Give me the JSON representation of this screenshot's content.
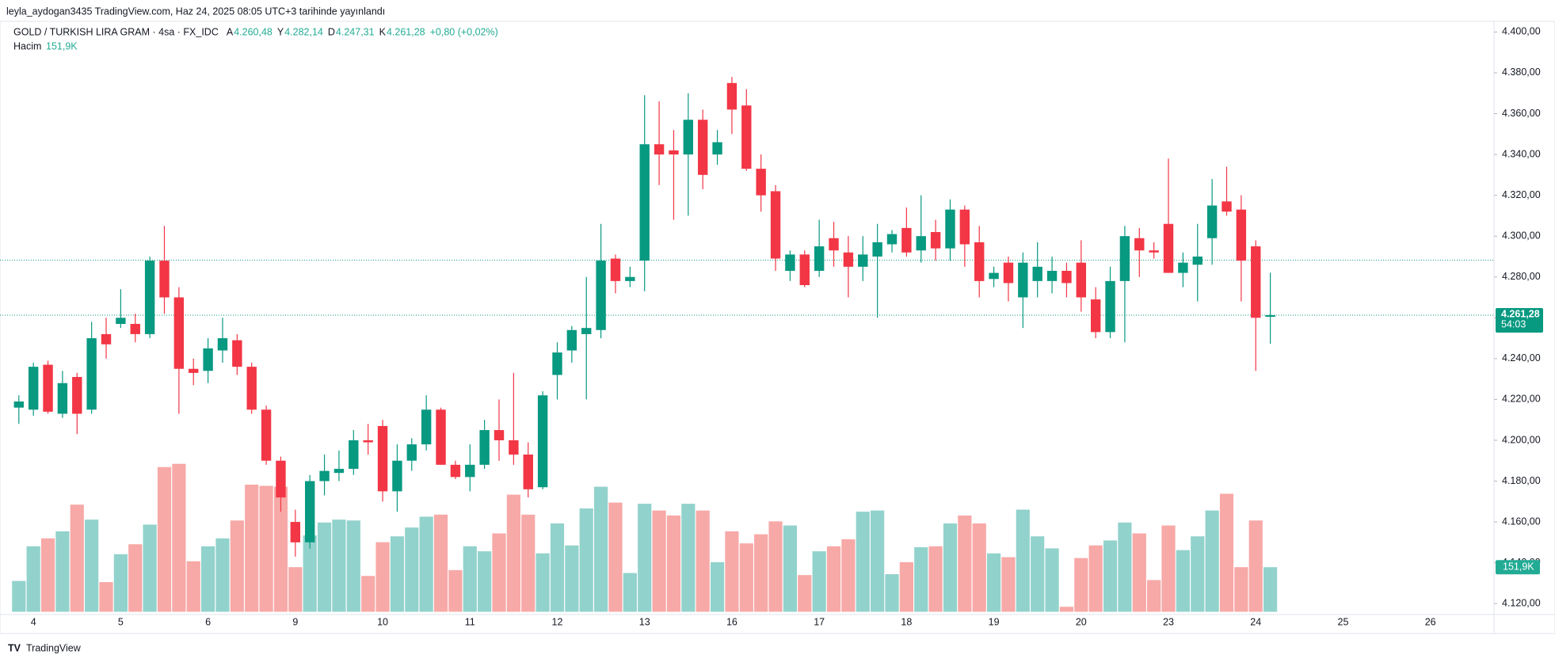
{
  "header": {
    "publisher": "leyla_aydogan3435 TradingView.com, Haz 24, 2025 08:05 UTC+3 tarihinde yayınlandı"
  },
  "chart_data": {
    "type": "candlestick",
    "symbol": "GOLD / TURKISH LIRA GRAM · 4sa · FX_IDC",
    "legend": {
      "open_key": "A",
      "open": "4.260,48",
      "high_key": "Y",
      "high": "4.282,14",
      "low_key": "D",
      "low": "4.247,31",
      "close_key": "K",
      "close": "4.261,28",
      "change": "+0,80 (+0,02%)",
      "volume_key": "Hacim",
      "volume": "151,9K"
    },
    "open": [
      4216,
      4215,
      4237,
      4213,
      4231,
      4215,
      4252,
      4257,
      4257,
      4252,
      4288,
      4270,
      4235,
      4234,
      4244,
      4249,
      4236,
      4215,
      4190,
      4160,
      4150,
      4180,
      4184,
      4186,
      4200,
      4207,
      4175,
      4190,
      4198,
      4215,
      4188,
      4182,
      4188,
      4205,
      4200,
      4193,
      4177,
      4232,
      4244,
      4252,
      4254,
      4289,
      4278,
      4288,
      4345,
      4342,
      4340,
      4357,
      4340,
      4375,
      4364,
      4333,
      4322,
      4283,
      4291,
      4283,
      4299,
      4292,
      4285,
      4290,
      4296,
      4304,
      4293,
      4302,
      4294,
      4313,
      4297,
      4279,
      4287,
      4270,
      4278,
      4278,
      4283,
      4287,
      4269,
      4253,
      4278,
      4299,
      4293,
      4306,
      4282,
      4286,
      4299,
      4317,
      4313,
      4295,
      4260.48
    ],
    "high": [
      4222,
      4238,
      4239,
      4234,
      4233,
      4258,
      4260,
      4274,
      4262,
      4290,
      4305,
      4275,
      4240,
      4250,
      4260,
      4252,
      4238,
      4217,
      4192,
      4166,
      4183,
      4193,
      4195,
      4205,
      4208,
      4210,
      4198,
      4201,
      4222,
      4216,
      4190,
      4198,
      4210,
      4220,
      4233,
      4199,
      4224,
      4248,
      4256,
      4280,
      4306,
      4291,
      4285,
      4369,
      4366,
      4352,
      4370,
      4362,
      4352,
      4378,
      4372,
      4340,
      4325,
      4293,
      4293,
      4308,
      4307,
      4300,
      4300,
      4306,
      4303,
      4314,
      4320,
      4308,
      4318,
      4315,
      4305,
      4285,
      4290,
      4292,
      4297,
      4290,
      4287,
      4298,
      4275,
      4285,
      4305,
      4304,
      4297,
      4338,
      4292,
      4306,
      4328,
      4334,
      4320,
      4298,
      4282.14
    ],
    "low": [
      4208,
      4212,
      4213,
      4211,
      4203,
      4213,
      4240,
      4255,
      4248,
      4250,
      4262,
      4213,
      4227,
      4228,
      4238,
      4232,
      4213,
      4188,
      4165,
      4143,
      4147,
      4173,
      4180,
      4183,
      4193,
      4170,
      4165,
      4185,
      4195,
      4188,
      4181,
      4175,
      4186,
      4190,
      4188,
      4172,
      4176,
      4220,
      4238,
      4220,
      4250,
      4272,
      4275,
      4273,
      4325,
      4308,
      4310,
      4323,
      4335,
      4350,
      4332,
      4312,
      4283,
      4278,
      4275,
      4280,
      4285,
      4270,
      4278,
      4260,
      4292,
      4290,
      4287,
      4288,
      4288,
      4285,
      4270,
      4275,
      4268,
      4255,
      4270,
      4272,
      4270,
      4263,
      4250,
      4250,
      4248,
      4280,
      4289,
      4282,
      4275,
      4268,
      4286,
      4310,
      4268,
      4234,
      4247.31
    ],
    "close": [
      4219,
      4236,
      4214,
      4228,
      4213,
      4250,
      4247,
      4260,
      4252,
      4288,
      4270,
      4235,
      4233,
      4245,
      4250,
      4236,
      4215,
      4190,
      4172,
      4150,
      4180,
      4185,
      4186,
      4200,
      4199,
      4175,
      4190,
      4198,
      4215,
      4188,
      4182,
      4188,
      4205,
      4200,
      4193,
      4176,
      4222,
      4243,
      4254,
      4255,
      4288,
      4278,
      4280,
      4345,
      4340,
      4340,
      4357,
      4330,
      4346,
      4362,
      4333,
      4320,
      4289,
      4291,
      4276,
      4295,
      4293,
      4285,
      4291,
      4297,
      4301,
      4292,
      4300,
      4294,
      4313,
      4296,
      4278,
      4282,
      4277,
      4287,
      4285,
      4283,
      4277,
      4270,
      4253,
      4278,
      4300,
      4293,
      4292,
      4282,
      4287,
      4290,
      4315,
      4312,
      4288,
      4260,
      4261.28
    ],
    "volume": [
      105,
      223,
      250,
      274,
      365,
      314,
      101,
      196,
      230,
      297,
      493,
      504,
      172,
      223,
      250,
      311,
      433,
      429,
      426,
      152,
      260,
      304,
      314,
      311,
      122,
      237,
      257,
      287,
      324,
      331,
      142,
      223,
      206,
      267,
      399,
      331,
      199,
      301,
      226,
      352,
      426,
      372,
      132,
      368,
      345,
      328,
      368,
      345,
      169,
      274,
      233,
      264,
      308,
      294,
      125,
      206,
      223,
      247,
      341,
      345,
      128,
      169,
      220,
      223,
      301,
      328,
      301,
      199,
      186,
      348,
      257,
      216,
      17,
      183,
      226,
      243,
      304,
      267,
      108,
      294,
      210,
      257,
      345,
      402,
      152,
      311,
      151.9
    ],
    "up_color": "#089981",
    "down_color": "#f23645",
    "up_volume_color": "#92d2cc",
    "down_volume_color": "#f7a9a7",
    "x_labels": [
      "4",
      "5",
      "6",
      "9",
      "10",
      "11",
      "12",
      "13",
      "16",
      "17",
      "18",
      "19",
      "20",
      "23",
      "24",
      "25",
      "26"
    ],
    "ylim": [
      4116,
      4405
    ],
    "yticks": [
      {
        "value": 4120,
        "label": "4.120,00"
      },
      {
        "value": 4140,
        "label": "4.140,00"
      },
      {
        "value": 4160,
        "label": "4.160,00"
      },
      {
        "value": 4180,
        "label": "4.180,00"
      },
      {
        "value": 4200,
        "label": "4.200,00"
      },
      {
        "value": 4220,
        "label": "4.220,00"
      },
      {
        "value": 4240,
        "label": "4.240,00"
      },
      {
        "value": 4260,
        "label": "4.260,00"
      },
      {
        "value": 4280,
        "label": "4.280,00"
      },
      {
        "value": 4300,
        "label": "4.300,00"
      },
      {
        "value": 4320,
        "label": "4.320,00"
      },
      {
        "value": 4340,
        "label": "4.340,00"
      },
      {
        "value": 4360,
        "label": "4.360,00"
      },
      {
        "value": 4380,
        "label": "4.380,00"
      },
      {
        "value": 4400,
        "label": "4.400,00"
      }
    ],
    "reference_line": 4288.2,
    "price_label": {
      "value": 4261.28,
      "label": "4.261,28"
    },
    "countdown": "54:03",
    "volume_label": {
      "value": 151.9,
      "label": "151,9K"
    }
  },
  "footer": {
    "brand": "TradingView"
  }
}
